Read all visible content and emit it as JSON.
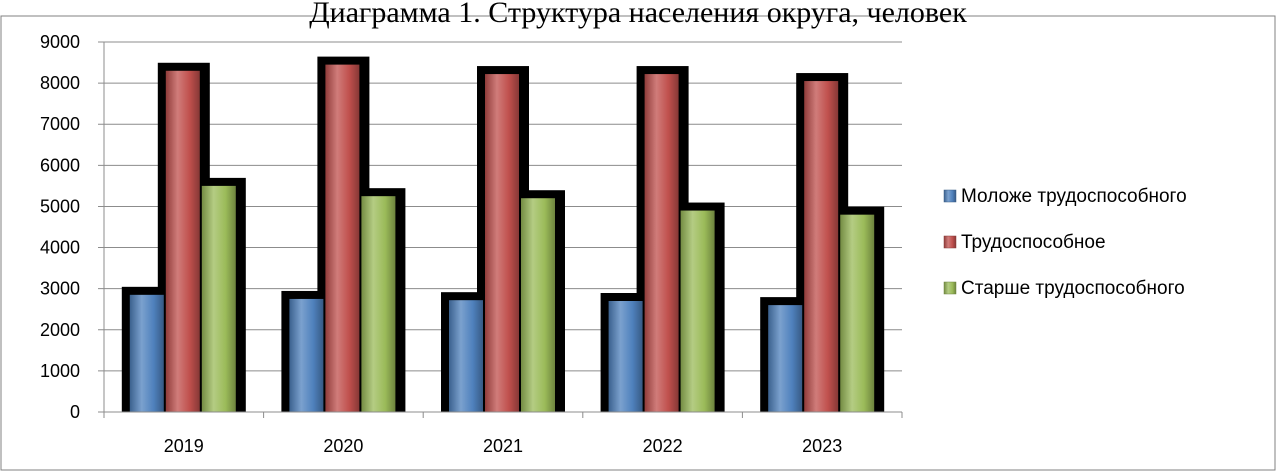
{
  "chart_data": {
    "type": "bar",
    "title": "Диаграмма 1. Структура населения округа, человек",
    "categories": [
      "2019",
      "2020",
      "2021",
      "2022",
      "2023"
    ],
    "series": [
      {
        "name": "Моложе трудоспособного",
        "color": "#4F81BD",
        "values": [
          2850,
          2750,
          2720,
          2700,
          2600
        ]
      },
      {
        "name": "Трудоспособное",
        "color": "#C0504D",
        "values": [
          8300,
          8450,
          8220,
          8220,
          8050
        ]
      },
      {
        "name": "Старше трудоспособного",
        "color": "#9BBB59",
        "values": [
          5500,
          5250,
          5200,
          4900,
          4800
        ]
      }
    ],
    "y_ticks": [
      "0",
      "1000",
      "2000",
      "3000",
      "4000",
      "5000",
      "6000",
      "7000",
      "8000",
      "9000"
    ],
    "ylim": [
      0,
      9000
    ],
    "grid": true,
    "legend_position": "right"
  }
}
